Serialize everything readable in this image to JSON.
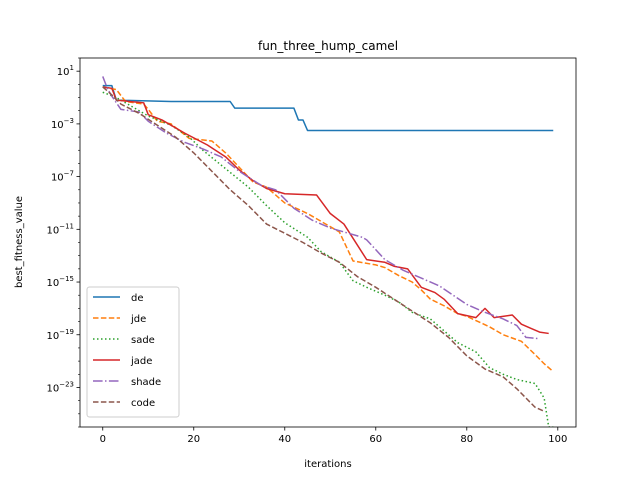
{
  "chart_data": {
    "type": "line",
    "title": "fun_three_hump_camel",
    "xlabel": "iterations",
    "ylabel": "best_fitness_value",
    "yscale": "log",
    "xlim": [
      -5,
      104
    ],
    "ylim_log10": [
      -26,
      2
    ],
    "x_ticks": [
      0,
      20,
      40,
      60,
      80,
      100
    ],
    "y_ticks": [
      {
        "exp": 1,
        "base": "10",
        "sup": "1"
      },
      {
        "exp": -3,
        "base": "10",
        "sup": "−3"
      },
      {
        "exp": -7,
        "base": "10",
        "sup": "−7"
      },
      {
        "exp": -11,
        "base": "10",
        "sup": "−11"
      },
      {
        "exp": -15,
        "base": "10",
        "sup": "−15"
      },
      {
        "exp": -19,
        "base": "10",
        "sup": "−19"
      },
      {
        "exp": -23,
        "base": "10",
        "sup": "−23"
      }
    ],
    "grid": false,
    "legend_position": "lower-left",
    "series": [
      {
        "name": "de",
        "color": "#1f77b4",
        "dash": "solid",
        "points_log10": [
          [
            0,
            -0.1
          ],
          [
            2,
            -0.1
          ],
          [
            3,
            -1.2
          ],
          [
            15,
            -1.3
          ],
          [
            28,
            -1.3
          ],
          [
            29,
            -1.8
          ],
          [
            42,
            -1.8
          ],
          [
            43,
            -2.7
          ],
          [
            44,
            -2.7
          ],
          [
            45,
            -3.5
          ],
          [
            99,
            -3.5
          ]
        ]
      },
      {
        "name": "jde",
        "color": "#ff7f0e",
        "dash": "dashed",
        "points_log10": [
          [
            0,
            -0.2
          ],
          [
            3,
            -0.4
          ],
          [
            5,
            -1.3
          ],
          [
            9,
            -1.5
          ],
          [
            10,
            -1.9
          ],
          [
            12,
            -2.8
          ],
          [
            15,
            -3.0
          ],
          [
            19,
            -4.1
          ],
          [
            24,
            -4.3
          ],
          [
            27,
            -5.2
          ],
          [
            30,
            -6.3
          ],
          [
            33,
            -7.4
          ],
          [
            36,
            -7.8
          ],
          [
            40,
            -9.0
          ],
          [
            45,
            -9.8
          ],
          [
            48,
            -10.4
          ],
          [
            52,
            -11.2
          ],
          [
            55,
            -13.4
          ],
          [
            60,
            -13.7
          ],
          [
            62,
            -13.9
          ],
          [
            65,
            -14.5
          ],
          [
            68,
            -15.0
          ],
          [
            70,
            -15.6
          ],
          [
            72,
            -16.3
          ],
          [
            75,
            -16.8
          ],
          [
            78,
            -17.4
          ],
          [
            80,
            -17.6
          ],
          [
            85,
            -18.4
          ],
          [
            88,
            -19.0
          ],
          [
            92,
            -19.5
          ],
          [
            95,
            -20.5
          ],
          [
            97,
            -21.2
          ],
          [
            99,
            -21.8
          ]
        ]
      },
      {
        "name": "sade",
        "color": "#2ca02c",
        "dash": "dotted",
        "points_log10": [
          [
            0,
            -0.6
          ],
          [
            3,
            -1.0
          ],
          [
            6,
            -1.6
          ],
          [
            10,
            -2.4
          ],
          [
            15,
            -3.1
          ],
          [
            19,
            -4.0
          ],
          [
            22,
            -5.0
          ],
          [
            27,
            -6.4
          ],
          [
            32,
            -7.8
          ],
          [
            36,
            -9.2
          ],
          [
            40,
            -10.5
          ],
          [
            45,
            -11.6
          ],
          [
            48,
            -12.7
          ],
          [
            52,
            -13.5
          ],
          [
            55,
            -14.9
          ],
          [
            58,
            -15.4
          ],
          [
            62,
            -16.0
          ],
          [
            65,
            -16.5
          ],
          [
            68,
            -17.3
          ],
          [
            72,
            -17.8
          ],
          [
            75,
            -18.7
          ],
          [
            78,
            -19.6
          ],
          [
            82,
            -20.3
          ],
          [
            85,
            -21.5
          ],
          [
            88,
            -22.0
          ],
          [
            91,
            -22.4
          ],
          [
            95,
            -22.7
          ],
          [
            97,
            -23.8
          ],
          [
            98,
            -26.0
          ],
          [
            99,
            -26.0
          ]
        ]
      },
      {
        "name": "jade",
        "color": "#d62728",
        "dash": "solid",
        "points_log10": [
          [
            0,
            -0.2
          ],
          [
            2,
            -0.3
          ],
          [
            3,
            -1.2
          ],
          [
            9,
            -1.4
          ],
          [
            10,
            -2.3
          ],
          [
            13,
            -2.7
          ],
          [
            18,
            -3.7
          ],
          [
            23,
            -4.6
          ],
          [
            27,
            -5.5
          ],
          [
            30,
            -6.5
          ],
          [
            33,
            -7.3
          ],
          [
            36,
            -7.9
          ],
          [
            40,
            -8.3
          ],
          [
            47,
            -8.4
          ],
          [
            50,
            -9.8
          ],
          [
            53,
            -10.6
          ],
          [
            58,
            -13.3
          ],
          [
            62,
            -13.5
          ],
          [
            64,
            -13.8
          ],
          [
            67,
            -14.0
          ],
          [
            70,
            -15.4
          ],
          [
            73,
            -15.8
          ],
          [
            75,
            -16.3
          ],
          [
            78,
            -17.4
          ],
          [
            82,
            -17.7
          ],
          [
            84,
            -17.0
          ],
          [
            86,
            -17.7
          ],
          [
            90,
            -17.5
          ],
          [
            92,
            -18.2
          ],
          [
            94,
            -18.5
          ],
          [
            96,
            -18.8
          ],
          [
            98,
            -18.9
          ]
        ]
      },
      {
        "name": "shade",
        "color": "#9467bd",
        "dash": "dashdot",
        "points_log10": [
          [
            0,
            0.6
          ],
          [
            1,
            -0.3
          ],
          [
            2,
            -0.9
          ],
          [
            4,
            -1.9
          ],
          [
            8,
            -2.1
          ],
          [
            10,
            -2.8
          ],
          [
            14,
            -3.7
          ],
          [
            18,
            -4.4
          ],
          [
            22,
            -4.9
          ],
          [
            26,
            -5.5
          ],
          [
            30,
            -6.6
          ],
          [
            35,
            -7.7
          ],
          [
            38,
            -8.0
          ],
          [
            42,
            -9.4
          ],
          [
            46,
            -10.3
          ],
          [
            50,
            -10.9
          ],
          [
            54,
            -11.3
          ],
          [
            57,
            -11.6
          ],
          [
            58,
            -11.8
          ],
          [
            62,
            -13.3
          ],
          [
            66,
            -14.1
          ],
          [
            70,
            -14.7
          ],
          [
            74,
            -15.3
          ],
          [
            77,
            -16.0
          ],
          [
            80,
            -16.7
          ],
          [
            84,
            -17.3
          ],
          [
            88,
            -17.8
          ],
          [
            91,
            -18.3
          ],
          [
            93,
            -19.2
          ],
          [
            96,
            -19.3
          ]
        ]
      },
      {
        "name": "code",
        "color": "#8c564b",
        "dash": "dashed",
        "points_log10": [
          [
            0,
            -0.2
          ],
          [
            2,
            -0.8
          ],
          [
            4,
            -1.5
          ],
          [
            8,
            -2.2
          ],
          [
            12,
            -3.1
          ],
          [
            16,
            -4.0
          ],
          [
            20,
            -5.2
          ],
          [
            24,
            -6.6
          ],
          [
            28,
            -8.0
          ],
          [
            32,
            -9.2
          ],
          [
            36,
            -10.6
          ],
          [
            40,
            -11.3
          ],
          [
            44,
            -12.0
          ],
          [
            48,
            -12.8
          ],
          [
            52,
            -13.5
          ],
          [
            56,
            -14.6
          ],
          [
            60,
            -15.4
          ],
          [
            64,
            -16.3
          ],
          [
            68,
            -17.2
          ],
          [
            72,
            -18.1
          ],
          [
            76,
            -19.2
          ],
          [
            80,
            -20.6
          ],
          [
            84,
            -21.6
          ],
          [
            88,
            -22.2
          ],
          [
            91,
            -23.1
          ],
          [
            93,
            -23.8
          ],
          [
            95,
            -24.5
          ],
          [
            97,
            -24.8
          ]
        ]
      }
    ]
  }
}
